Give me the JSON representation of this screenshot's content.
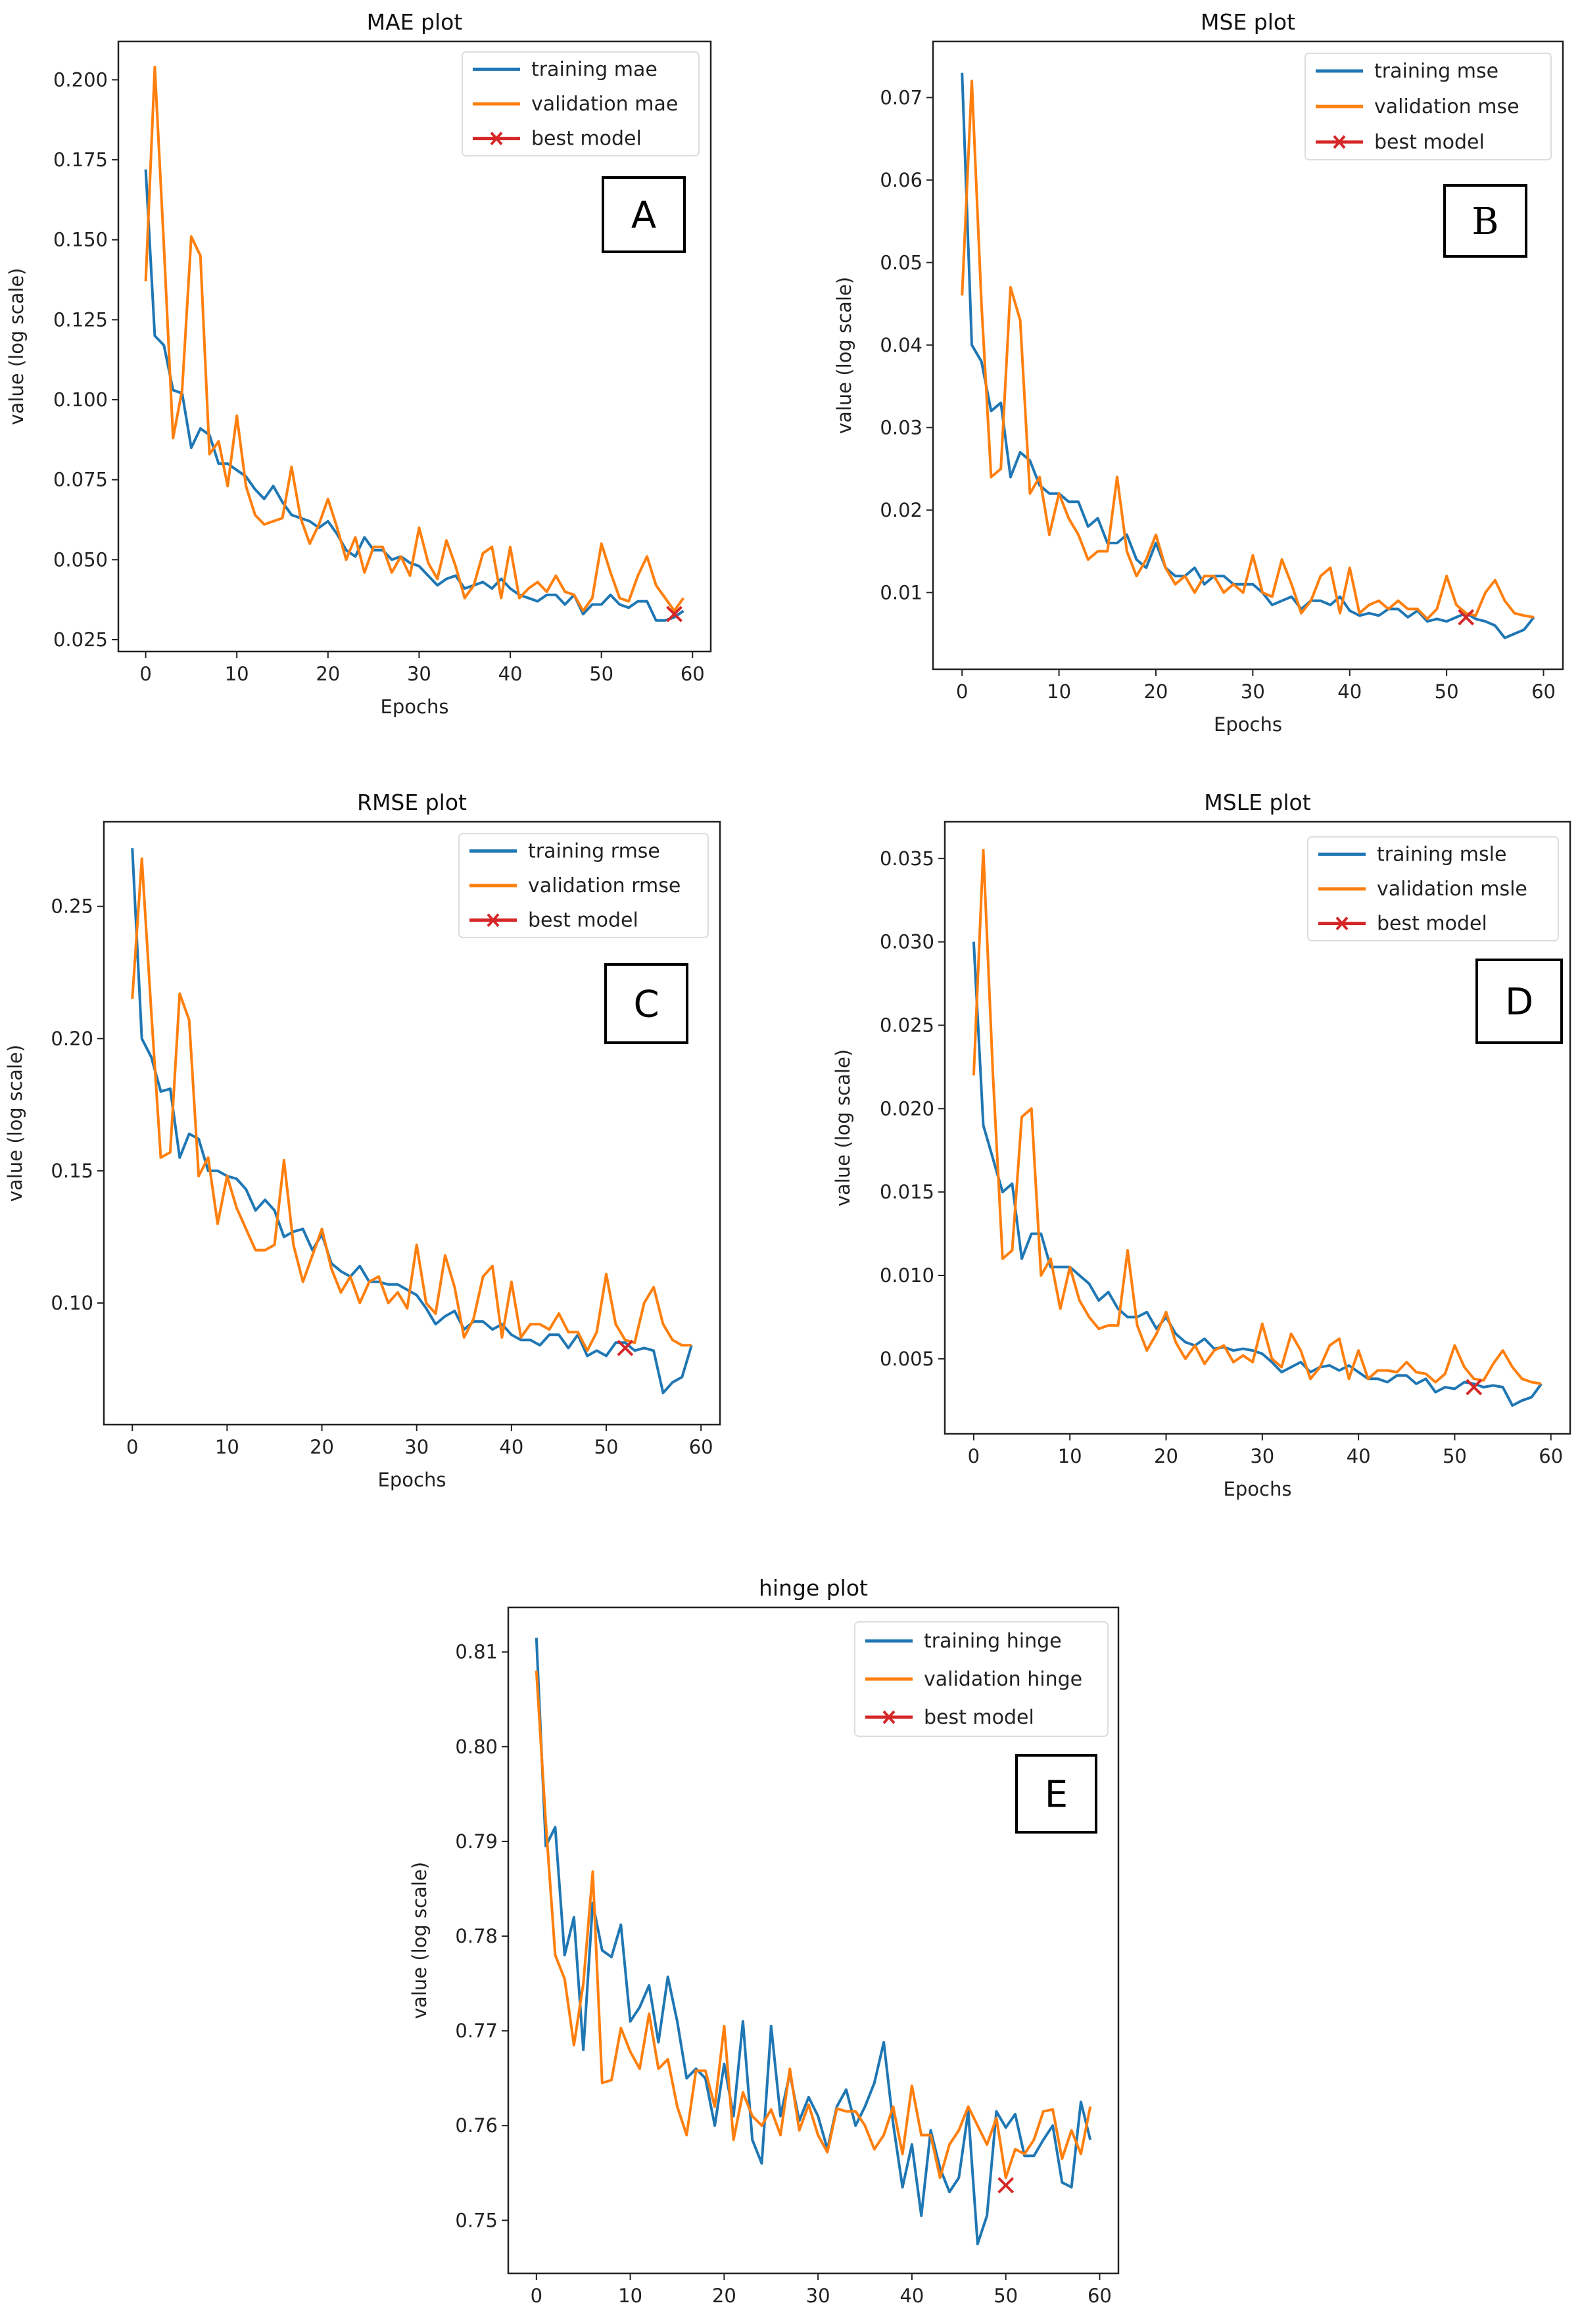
{
  "colors": {
    "training": "#1f77b4",
    "validation": "#ff7f0e",
    "best": "#d62728"
  },
  "chart_data": [
    {
      "type": "line",
      "panel": "A",
      "title": "MAE plot",
      "xlabel": "Epochs",
      "ylabel": "value (log scale)",
      "xlim": [
        -3,
        62
      ],
      "ylim": [
        0.0213,
        0.212
      ],
      "xticks": [
        0,
        10,
        20,
        30,
        40,
        50,
        60
      ],
      "xtick_labels": [
        "0",
        "10",
        "20",
        "30",
        "40",
        "50",
        "60"
      ],
      "yticks": [
        0.025,
        0.05,
        0.075,
        0.1,
        0.125,
        0.15,
        0.175,
        0.2
      ],
      "ytick_labels": [
        "0.025",
        "0.050",
        "0.075",
        "0.100",
        "0.125",
        "0.150",
        "0.175",
        "0.200"
      ],
      "legend": [
        "training mae",
        "validation mae",
        "best model"
      ],
      "legend_position": "top-right",
      "series": [
        {
          "name": "training mae",
          "values": [
            0.172,
            0.12,
            0.117,
            0.103,
            0.102,
            0.085,
            0.091,
            0.089,
            0.08,
            0.08,
            0.078,
            0.076,
            0.072,
            0.069,
            0.073,
            0.068,
            0.064,
            0.063,
            0.062,
            0.06,
            0.062,
            0.058,
            0.053,
            0.051,
            0.057,
            0.053,
            0.053,
            0.05,
            0.051,
            0.049,
            0.048,
            0.045,
            0.042,
            0.044,
            0.045,
            0.041,
            0.042,
            0.043,
            0.041,
            0.044,
            0.041,
            0.039,
            0.038,
            0.037,
            0.039,
            0.039,
            0.036,
            0.039,
            0.033,
            0.036,
            0.036,
            0.039,
            0.036,
            0.035,
            0.037,
            0.037,
            0.031,
            0.031,
            0.032,
            0.034
          ]
        },
        {
          "name": "validation mae",
          "values": [
            0.137,
            0.204,
            0.148,
            0.088,
            0.103,
            0.151,
            0.145,
            0.083,
            0.087,
            0.073,
            0.095,
            0.073,
            0.064,
            0.061,
            0.062,
            0.063,
            0.079,
            0.063,
            0.055,
            0.061,
            0.069,
            0.06,
            0.05,
            0.057,
            0.046,
            0.054,
            0.054,
            0.046,
            0.051,
            0.045,
            0.06,
            0.049,
            0.044,
            0.056,
            0.048,
            0.038,
            0.042,
            0.052,
            0.054,
            0.038,
            0.054,
            0.038,
            0.041,
            0.043,
            0.04,
            0.045,
            0.04,
            0.039,
            0.034,
            0.038,
            0.055,
            0.046,
            0.038,
            0.037,
            0.045,
            0.051,
            0.042,
            0.038,
            0.034,
            0.038
          ]
        }
      ],
      "best_model": {
        "epoch": 58,
        "value": 0.033
      }
    },
    {
      "type": "line",
      "panel": "B",
      "title": "MSE plot",
      "xlabel": "Epochs",
      "ylabel": "value (log scale)",
      "xlim": [
        -3,
        62
      ],
      "ylim": [
        0.0007,
        0.0768
      ],
      "xticks": [
        0,
        10,
        20,
        30,
        40,
        50,
        60
      ],
      "xtick_labels": [
        "0",
        "10",
        "20",
        "30",
        "40",
        "50",
        "60"
      ],
      "yticks": [
        0.01,
        0.02,
        0.03,
        0.04,
        0.05,
        0.06,
        0.07
      ],
      "ytick_labels": [
        "0.01",
        "0.02",
        "0.03",
        "0.04",
        "0.05",
        "0.06",
        "0.07"
      ],
      "legend": [
        "training mse",
        "validation mse",
        "best model"
      ],
      "legend_position": "top-right",
      "series": [
        {
          "name": "training mse",
          "values": [
            0.073,
            0.04,
            0.038,
            0.032,
            0.033,
            0.024,
            0.027,
            0.026,
            0.023,
            0.022,
            0.022,
            0.021,
            0.021,
            0.018,
            0.019,
            0.016,
            0.016,
            0.017,
            0.014,
            0.013,
            0.016,
            0.013,
            0.012,
            0.012,
            0.013,
            0.011,
            0.012,
            0.012,
            0.011,
            0.011,
            0.011,
            0.01,
            0.0085,
            0.009,
            0.0095,
            0.008,
            0.009,
            0.009,
            0.0085,
            0.0095,
            0.0078,
            0.0072,
            0.0075,
            0.0072,
            0.008,
            0.008,
            0.007,
            0.0078,
            0.0065,
            0.0068,
            0.0065,
            0.007,
            0.0075,
            0.0068,
            0.0065,
            0.006,
            0.0045,
            0.005,
            0.0055,
            0.007
          ]
        },
        {
          "name": "validation mse",
          "values": [
            0.046,
            0.072,
            0.045,
            0.024,
            0.025,
            0.047,
            0.043,
            0.022,
            0.024,
            0.017,
            0.022,
            0.019,
            0.017,
            0.014,
            0.015,
            0.015,
            0.024,
            0.015,
            0.012,
            0.014,
            0.017,
            0.013,
            0.011,
            0.012,
            0.01,
            0.012,
            0.012,
            0.01,
            0.011,
            0.01,
            0.0145,
            0.01,
            0.0095,
            0.014,
            0.011,
            0.0075,
            0.009,
            0.012,
            0.013,
            0.0075,
            0.013,
            0.0075,
            0.0085,
            0.009,
            0.008,
            0.009,
            0.008,
            0.008,
            0.0068,
            0.008,
            0.012,
            0.0085,
            0.0075,
            0.0072,
            0.01,
            0.0115,
            0.009,
            0.0075,
            0.0072,
            0.007
          ]
        }
      ],
      "best_model": {
        "epoch": 52,
        "value": 0.007
      }
    },
    {
      "type": "line",
      "panel": "C",
      "title": "RMSE plot",
      "xlabel": "Epochs",
      "ylabel": "value (log scale)",
      "xlim": [
        -3,
        62
      ],
      "ylim": [
        0.054,
        0.282
      ],
      "xticks": [
        0,
        10,
        20,
        30,
        40,
        50,
        60
      ],
      "xtick_labels": [
        "0",
        "10",
        "20",
        "30",
        "40",
        "50",
        "60"
      ],
      "yticks": [
        0.1,
        0.15,
        0.2,
        0.25
      ],
      "ytick_labels": [
        "0.10",
        "0.15",
        "0.20",
        "0.25"
      ],
      "legend": [
        "training rmse",
        "validation rmse",
        "best model"
      ],
      "legend_position": "top-right",
      "series": [
        {
          "name": "training rmse",
          "values": [
            0.272,
            0.2,
            0.193,
            0.18,
            0.181,
            0.155,
            0.164,
            0.162,
            0.15,
            0.15,
            0.148,
            0.147,
            0.143,
            0.135,
            0.139,
            0.135,
            0.125,
            0.127,
            0.128,
            0.12,
            0.126,
            0.115,
            0.112,
            0.11,
            0.114,
            0.108,
            0.108,
            0.107,
            0.107,
            0.105,
            0.103,
            0.098,
            0.092,
            0.095,
            0.097,
            0.09,
            0.093,
            0.093,
            0.09,
            0.092,
            0.088,
            0.086,
            0.086,
            0.084,
            0.088,
            0.088,
            0.083,
            0.088,
            0.08,
            0.082,
            0.08,
            0.085,
            0.085,
            0.082,
            0.083,
            0.082,
            0.066,
            0.07,
            0.072,
            0.084
          ]
        },
        {
          "name": "validation rmse",
          "values": [
            0.215,
            0.268,
            0.21,
            0.155,
            0.157,
            0.217,
            0.207,
            0.148,
            0.155,
            0.13,
            0.148,
            0.136,
            0.128,
            0.12,
            0.12,
            0.122,
            0.154,
            0.122,
            0.108,
            0.118,
            0.128,
            0.113,
            0.104,
            0.11,
            0.1,
            0.108,
            0.11,
            0.1,
            0.104,
            0.098,
            0.122,
            0.1,
            0.096,
            0.118,
            0.106,
            0.087,
            0.094,
            0.11,
            0.114,
            0.087,
            0.108,
            0.087,
            0.092,
            0.092,
            0.09,
            0.096,
            0.089,
            0.089,
            0.082,
            0.089,
            0.111,
            0.092,
            0.086,
            0.085,
            0.1,
            0.106,
            0.092,
            0.086,
            0.084,
            0.084
          ]
        }
      ],
      "best_model": {
        "epoch": 52,
        "value": 0.083
      }
    },
    {
      "type": "line",
      "panel": "D",
      "title": "MSLE plot",
      "xlabel": "Epochs",
      "ylabel": "value (log scale)",
      "xlim": [
        -3,
        62
      ],
      "ylim": [
        0.0005,
        0.0372
      ],
      "xticks": [
        0,
        10,
        20,
        30,
        40,
        50,
        60
      ],
      "xtick_labels": [
        "0",
        "10",
        "20",
        "30",
        "40",
        "50",
        "60"
      ],
      "yticks": [
        0.005,
        0.01,
        0.015,
        0.02,
        0.025,
        0.03,
        0.035
      ],
      "ytick_labels": [
        "0.005",
        "0.010",
        "0.015",
        "0.020",
        "0.025",
        "0.030",
        "0.035"
      ],
      "legend": [
        "training msle",
        "validation msle",
        "best model"
      ],
      "legend_position": "top-right",
      "series": [
        {
          "name": "training msle",
          "values": [
            0.03,
            0.019,
            0.017,
            0.015,
            0.0155,
            0.011,
            0.0125,
            0.0125,
            0.0105,
            0.0105,
            0.0105,
            0.01,
            0.0095,
            0.0085,
            0.009,
            0.008,
            0.0075,
            0.0075,
            0.0078,
            0.0068,
            0.0075,
            0.0065,
            0.006,
            0.0058,
            0.0062,
            0.0056,
            0.0057,
            0.0055,
            0.0056,
            0.0055,
            0.0053,
            0.0048,
            0.0042,
            0.0045,
            0.0048,
            0.0042,
            0.0045,
            0.0046,
            0.0043,
            0.0046,
            0.0042,
            0.0038,
            0.0038,
            0.0036,
            0.004,
            0.004,
            0.0035,
            0.0038,
            0.003,
            0.0033,
            0.0032,
            0.0036,
            0.0035,
            0.0033,
            0.0034,
            0.0033,
            0.0022,
            0.0025,
            0.0027,
            0.0035
          ]
        },
        {
          "name": "validation msle",
          "values": [
            0.022,
            0.0355,
            0.022,
            0.011,
            0.0115,
            0.0195,
            0.02,
            0.01,
            0.011,
            0.008,
            0.0105,
            0.0085,
            0.0075,
            0.0068,
            0.007,
            0.007,
            0.0115,
            0.007,
            0.0055,
            0.0065,
            0.0078,
            0.006,
            0.005,
            0.0058,
            0.0047,
            0.0055,
            0.0058,
            0.0048,
            0.0052,
            0.0048,
            0.0071,
            0.005,
            0.0045,
            0.0065,
            0.0055,
            0.0038,
            0.0045,
            0.0058,
            0.0062,
            0.0038,
            0.0055,
            0.0038,
            0.0043,
            0.0043,
            0.0042,
            0.0048,
            0.0042,
            0.0041,
            0.0036,
            0.0041,
            0.0058,
            0.0045,
            0.0038,
            0.0037,
            0.0047,
            0.0055,
            0.0045,
            0.0038,
            0.0036,
            0.0035
          ]
        }
      ],
      "best_model": {
        "epoch": 52,
        "value": 0.0033
      }
    },
    {
      "type": "line",
      "panel": "E",
      "title": "hinge plot",
      "xlabel": "",
      "ylabel": "value (log scale)",
      "xlim": [
        -3,
        62
      ],
      "ylim": [
        0.7444,
        0.8147
      ],
      "xticks": [
        0,
        10,
        20,
        30,
        40,
        50,
        60
      ],
      "xtick_labels": [
        "0",
        "10",
        "20",
        "30",
        "40",
        "50",
        "60"
      ],
      "yticks": [
        0.75,
        0.76,
        0.77,
        0.78,
        0.79,
        0.8,
        0.81
      ],
      "ytick_labels": [
        "0.75",
        "0.76",
        "0.77",
        "0.78",
        "0.79",
        "0.80",
        "0.81"
      ],
      "legend": [
        "training hinge",
        "validation hinge",
        "best model"
      ],
      "legend_position": "top-right",
      "series": [
        {
          "name": "training hinge",
          "values": [
            0.8115,
            0.7895,
            0.7915,
            0.778,
            0.782,
            0.768,
            0.7835,
            0.7785,
            0.7778,
            0.7812,
            0.771,
            0.7725,
            0.7748,
            0.7688,
            0.7757,
            0.771,
            0.765,
            0.766,
            0.765,
            0.76,
            0.7665,
            0.761,
            0.771,
            0.7585,
            0.756,
            0.7705,
            0.761,
            0.7655,
            0.7605,
            0.763,
            0.761,
            0.7575,
            0.762,
            0.7638,
            0.76,
            0.762,
            0.7645,
            0.7688,
            0.7602,
            0.7535,
            0.758,
            0.7505,
            0.7595,
            0.7555,
            0.753,
            0.7545,
            0.7615,
            0.7475,
            0.7505,
            0.7615,
            0.7598,
            0.7612,
            0.7568,
            0.7568,
            0.7585,
            0.76,
            0.754,
            0.7535,
            0.7625,
            0.7585
          ]
        },
        {
          "name": "validation hinge",
          "values": [
            0.808,
            0.792,
            0.778,
            0.7755,
            0.7685,
            0.775,
            0.7868,
            0.7645,
            0.7648,
            0.7703,
            0.7678,
            0.766,
            0.7718,
            0.766,
            0.767,
            0.762,
            0.759,
            0.7658,
            0.7658,
            0.762,
            0.7705,
            0.7585,
            0.7635,
            0.761,
            0.76,
            0.7617,
            0.759,
            0.766,
            0.7595,
            0.7622,
            0.759,
            0.7572,
            0.7618,
            0.7615,
            0.7615,
            0.76,
            0.7575,
            0.759,
            0.762,
            0.757,
            0.7642,
            0.759,
            0.759,
            0.7545,
            0.758,
            0.7595,
            0.762,
            0.76,
            0.758,
            0.7608,
            0.7545,
            0.7575,
            0.757,
            0.7585,
            0.7615,
            0.7617,
            0.7565,
            0.7595,
            0.757,
            0.762
          ]
        }
      ],
      "best_model": {
        "epoch": 50,
        "value": 0.7537
      }
    }
  ]
}
